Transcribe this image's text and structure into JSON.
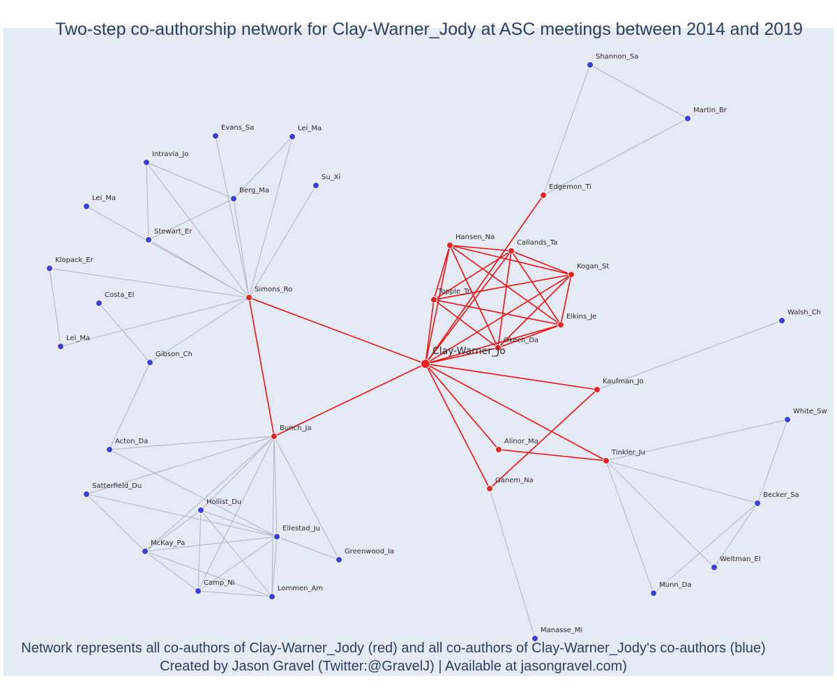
{
  "title": "Two-step co-authorship network for Clay-Warner_Jody at ASC meetings between 2014 and 2019",
  "footer": {
    "line1": "Network represents all co-authors of Clay-Warner_Jody (red) and all co-authors of Clay-Warner_Jody's co-authors (blue)",
    "line2": "Created by Jason Gravel (Twitter:@GravelJ) | Available at jasongravel.com)"
  },
  "colors": {
    "background": "#e5eaf4",
    "coauthor": "#ee2222",
    "second_step": "#3b3fe0",
    "red_edge": "#ee1111",
    "gray_edge": "#b0b4c0",
    "text": "#2a3f5f"
  },
  "nodes": [
    {
      "id": "Clay-Warner_Jo",
      "group": "ego"
    },
    {
      "id": "Hansen_Na",
      "group": "coauthor"
    },
    {
      "id": "Callands_Ta",
      "group": "coauthor"
    },
    {
      "id": "Kogan_St",
      "group": "coauthor"
    },
    {
      "id": "Topple_Tr",
      "group": "coauthor"
    },
    {
      "id": "Elkins_Je",
      "group": "coauthor"
    },
    {
      "id": "Okech_Da",
      "group": "coauthor"
    },
    {
      "id": "Edgemon_Ti",
      "group": "coauthor"
    },
    {
      "id": "Simons_Ro",
      "group": "coauthor"
    },
    {
      "id": "Bunch_Ja",
      "group": "coauthor"
    },
    {
      "id": "Kaufman_Jo",
      "group": "coauthor"
    },
    {
      "id": "Alinor_Ma",
      "group": "coauthor"
    },
    {
      "id": "Ganem_Na",
      "group": "coauthor"
    },
    {
      "id": "Tinkler_Ju",
      "group": "coauthor"
    },
    {
      "id": "Shannon_Sa",
      "group": "second"
    },
    {
      "id": "Martin_Br",
      "group": "second"
    },
    {
      "id": "Evans_Sa",
      "group": "second"
    },
    {
      "id": "Lei_Ma",
      "group": "second",
      "key": "Lei_Ma_1"
    },
    {
      "id": "Intravia_Jo",
      "group": "second"
    },
    {
      "id": "Su_Xi",
      "group": "second"
    },
    {
      "id": "Berg_Ma",
      "group": "second"
    },
    {
      "id": "Lei_Ma",
      "group": "second",
      "key": "Lei_Ma_2"
    },
    {
      "id": "Stewart_Er",
      "group": "second"
    },
    {
      "id": "Klopack_Er",
      "group": "second"
    },
    {
      "id": "Costa_El",
      "group": "second"
    },
    {
      "id": "Lei_Ma",
      "group": "second",
      "key": "Lei_Ma_3"
    },
    {
      "id": "Gibson_Ch",
      "group": "second"
    },
    {
      "id": "Walsh_Ch",
      "group": "second"
    },
    {
      "id": "Acton_Da",
      "group": "second"
    },
    {
      "id": "Satterfield_Du",
      "group": "second"
    },
    {
      "id": "Hollist_Du",
      "group": "second"
    },
    {
      "id": "Ellestad_Ju",
      "group": "second"
    },
    {
      "id": "McKay_Pa",
      "group": "second"
    },
    {
      "id": "Greenwood_Ia",
      "group": "second"
    },
    {
      "id": "Camp_Ni",
      "group": "second"
    },
    {
      "id": "Lommen_Am",
      "group": "second"
    },
    {
      "id": "White_Sw",
      "group": "second"
    },
    {
      "id": "Becker_Sa",
      "group": "second"
    },
    {
      "id": "Weltman_El",
      "group": "second"
    },
    {
      "id": "Munn_Da",
      "group": "second"
    },
    {
      "id": "Manasse_Mi",
      "group": "second"
    }
  ],
  "edges": [
    [
      "Clay-Warner_Jo",
      "Simons_Ro",
      "red"
    ],
    [
      "Clay-Warner_Jo",
      "Bunch_Ja",
      "red"
    ],
    [
      "Simons_Ro",
      "Bunch_Ja",
      "red"
    ],
    [
      "Clay-Warner_Jo",
      "Hansen_Na",
      "red"
    ],
    [
      "Clay-Warner_Jo",
      "Callands_Ta",
      "red"
    ],
    [
      "Clay-Warner_Jo",
      "Kogan_St",
      "red"
    ],
    [
      "Clay-Warner_Jo",
      "Topple_Tr",
      "red"
    ],
    [
      "Clay-Warner_Jo",
      "Elkins_Je",
      "red"
    ],
    [
      "Clay-Warner_Jo",
      "Okech_Da",
      "red"
    ],
    [
      "Clay-Warner_Jo",
      "Edgemon_Ti",
      "red"
    ],
    [
      "Clay-Warner_Jo",
      "Kaufman_Jo",
      "red"
    ],
    [
      "Clay-Warner_Jo",
      "Alinor_Ma",
      "red"
    ],
    [
      "Clay-Warner_Jo",
      "Ganem_Na",
      "red"
    ],
    [
      "Clay-Warner_Jo",
      "Tinkler_Ju",
      "red"
    ],
    [
      "Hansen_Na",
      "Callands_Ta",
      "red"
    ],
    [
      "Hansen_Na",
      "Kogan_St",
      "red"
    ],
    [
      "Hansen_Na",
      "Topple_Tr",
      "red"
    ],
    [
      "Hansen_Na",
      "Elkins_Je",
      "red"
    ],
    [
      "Hansen_Na",
      "Okech_Da",
      "red"
    ],
    [
      "Callands_Ta",
      "Kogan_St",
      "red"
    ],
    [
      "Callands_Ta",
      "Topple_Tr",
      "red"
    ],
    [
      "Callands_Ta",
      "Elkins_Je",
      "red"
    ],
    [
      "Callands_Ta",
      "Okech_Da",
      "red"
    ],
    [
      "Kogan_St",
      "Topple_Tr",
      "red"
    ],
    [
      "Kogan_St",
      "Elkins_Je",
      "red"
    ],
    [
      "Kogan_St",
      "Okech_Da",
      "red"
    ],
    [
      "Topple_Tr",
      "Elkins_Je",
      "red"
    ],
    [
      "Topple_Tr",
      "Okech_Da",
      "red"
    ],
    [
      "Elkins_Je",
      "Okech_Da",
      "red"
    ],
    [
      "Alinor_Ma",
      "Tinkler_Ju",
      "red"
    ],
    [
      "Ganem_Na",
      "Kaufman_Jo",
      "red"
    ],
    [
      "Edgemon_Ti",
      "Shannon_Sa",
      "gray"
    ],
    [
      "Edgemon_Ti",
      "Martin_Br",
      "gray"
    ],
    [
      "Shannon_Sa",
      "Martin_Br",
      "gray"
    ],
    [
      "Simons_Ro",
      "Evans_Sa",
      "gray"
    ],
    [
      "Simons_Ro",
      "Lei_Ma_1",
      "gray"
    ],
    [
      "Simons_Ro",
      "Intravia_Jo",
      "gray"
    ],
    [
      "Simons_Ro",
      "Su_Xi",
      "gray"
    ],
    [
      "Simons_Ro",
      "Berg_Ma",
      "gray"
    ],
    [
      "Simons_Ro",
      "Lei_Ma_2",
      "gray"
    ],
    [
      "Simons_Ro",
      "Stewart_Er",
      "gray"
    ],
    [
      "Simons_Ro",
      "Klopack_Er",
      "gray"
    ],
    [
      "Simons_Ro",
      "Lei_Ma_3",
      "gray"
    ],
    [
      "Simons_Ro",
      "Gibson_Ch",
      "gray"
    ],
    [
      "Berg_Ma",
      "Lei_Ma_1",
      "gray"
    ],
    [
      "Berg_Ma",
      "Intravia_Jo",
      "gray"
    ],
    [
      "Berg_Ma",
      "Stewart_Er",
      "gray"
    ],
    [
      "Intravia_Jo",
      "Stewart_Er",
      "gray"
    ],
    [
      "Klopack_Er",
      "Lei_Ma_3",
      "gray"
    ],
    [
      "Costa_El",
      "Gibson_Ch",
      "gray"
    ],
    [
      "Gibson_Ch",
      "Acton_Da",
      "gray"
    ],
    [
      "Kaufman_Jo",
      "Walsh_Ch",
      "gray"
    ],
    [
      "Bunch_Ja",
      "Acton_Da",
      "gray"
    ],
    [
      "Bunch_Ja",
      "Satterfield_Du",
      "gray"
    ],
    [
      "Bunch_Ja",
      "Hollist_Du",
      "gray"
    ],
    [
      "Bunch_Ja",
      "Ellestad_Ju",
      "gray"
    ],
    [
      "Bunch_Ja",
      "McKay_Pa",
      "gray"
    ],
    [
      "Bunch_Ja",
      "Greenwood_Ia",
      "gray"
    ],
    [
      "Bunch_Ja",
      "Camp_Ni",
      "gray"
    ],
    [
      "Bunch_Ja",
      "Lommen_Am",
      "gray"
    ],
    [
      "Acton_Da",
      "Ellestad_Ju",
      "gray"
    ],
    [
      "Satterfield_Du",
      "Ellestad_Ju",
      "gray"
    ],
    [
      "Satterfield_Du",
      "McKay_Pa",
      "gray"
    ],
    [
      "Hollist_Du",
      "Ellestad_Ju",
      "gray"
    ],
    [
      "Hollist_Du",
      "McKay_Pa",
      "gray"
    ],
    [
      "Hollist_Du",
      "Camp_Ni",
      "gray"
    ],
    [
      "Hollist_Du",
      "Lommen_Am",
      "gray"
    ],
    [
      "Ellestad_Ju",
      "McKay_Pa",
      "gray"
    ],
    [
      "Ellestad_Ju",
      "Greenwood_Ia",
      "gray"
    ],
    [
      "Ellestad_Ju",
      "Camp_Ni",
      "gray"
    ],
    [
      "Ellestad_Ju",
      "Lommen_Am",
      "gray"
    ],
    [
      "McKay_Pa",
      "Camp_Ni",
      "gray"
    ],
    [
      "McKay_Pa",
      "Lommen_Am",
      "gray"
    ],
    [
      "Camp_Ni",
      "Lommen_Am",
      "gray"
    ],
    [
      "Tinkler_Ju",
      "White_Sw",
      "gray"
    ],
    [
      "Tinkler_Ju",
      "Becker_Sa",
      "gray"
    ],
    [
      "Tinkler_Ju",
      "Weltman_El",
      "gray"
    ],
    [
      "Tinkler_Ju",
      "Munn_Da",
      "gray"
    ],
    [
      "White_Sw",
      "Becker_Sa",
      "gray"
    ],
    [
      "Becker_Sa",
      "Weltman_El",
      "gray"
    ],
    [
      "Becker_Sa",
      "Munn_Da",
      "gray"
    ],
    [
      "Ganem_Na",
      "Manasse_Mi",
      "gray"
    ]
  ]
}
